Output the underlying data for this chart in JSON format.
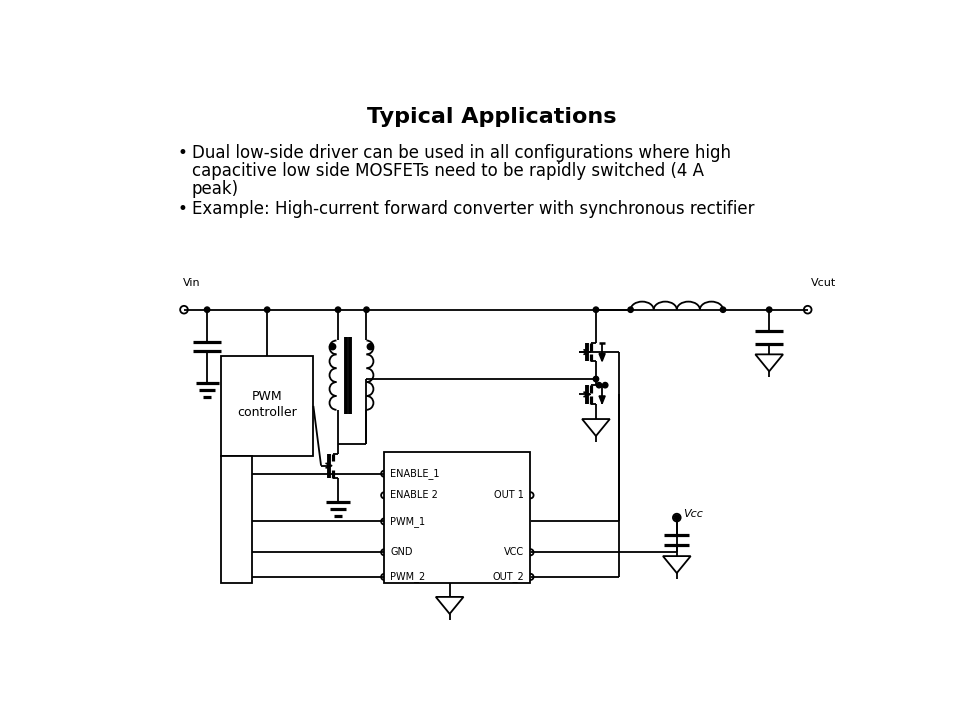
{
  "title": "Typical Applications",
  "title_fontsize": 16,
  "title_fontweight": "bold",
  "bullet1_line1": "Dual low-side driver can be used in all configurations where high",
  "bullet1_line2": "capacitive low side MOSFETs need to be rapidly switched (4 A",
  "bullet1_line3": "peak)",
  "bullet2": "Example: High-current forward converter with synchronous rectifier",
  "background_color": "#ffffff",
  "line_color": "#000000",
  "lw": 1.3
}
